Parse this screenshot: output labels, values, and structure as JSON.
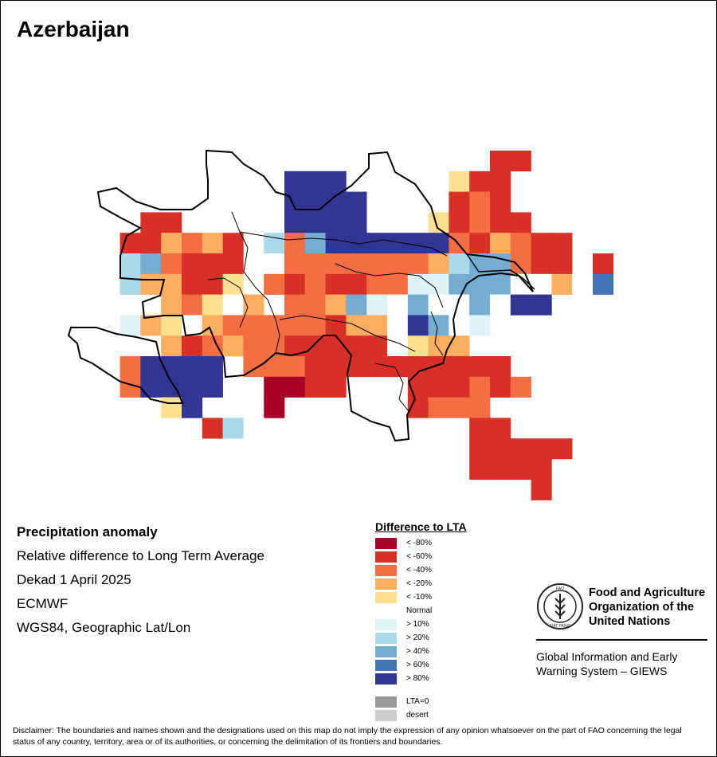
{
  "title": "Azerbaijan",
  "info": {
    "title": "Precipitation anomaly",
    "line1": "Relative difference to Long Term Average",
    "line2": "Dekad 1 April 2025",
    "line3": "ECMWF",
    "line4": "WGS84, Geographic Lat/Lon"
  },
  "legend": {
    "title": "Difference to LTA",
    "items": [
      {
        "label": "< -80%",
        "color": "#A50026"
      },
      {
        "label": "< -60%",
        "color": "#D73027"
      },
      {
        "label": "< -40%",
        "color": "#F46D43"
      },
      {
        "label": "< -20%",
        "color": "#FDAE61"
      },
      {
        "label": "< -10%",
        "color": "#FEE090"
      },
      {
        "label": "Normal",
        "color": "#FFFFFF"
      },
      {
        "label": "> 10%",
        "color": "#E0F3F8"
      },
      {
        "label": "> 20%",
        "color": "#ABD9E9"
      },
      {
        "label": "> 40%",
        "color": "#74ADD1"
      },
      {
        "label": "> 60%",
        "color": "#4575B4"
      },
      {
        "label": "> 80%",
        "color": "#313695"
      }
    ],
    "extra": [
      {
        "label": "LTA=0",
        "color": "#9B9B9B"
      },
      {
        "label": "desert",
        "color": "#CCCCCC"
      }
    ]
  },
  "map": {
    "grid_rows": [
      [
        "........................................................................."
      ],
      [
        "........................................................................."
      ]
    ],
    "palette_keys": {
      "A": "< -80%",
      "B": "< -60%",
      "C": "< -40%",
      "D": "< -20%",
      "E": "< -10%",
      "N": "Normal",
      "F": "> 10%",
      "G": "> 20%",
      "H": "> 40%",
      "I": "> 60%",
      "J": "> 80%"
    },
    "cells": [
      "....................BB......................",
      "..........JJJ.....EBB.......................",
      "..........JJJJ....BCB.......................",
      "...BB.....JJJJ...EBCBB......................",
      "..BBDCDB.GCHJJJJJJCBDCBB....................",
      "..GHCBBB.NCCCCCCCDGHHCBB.B..................",
      "..GDDBBE.CBCBBCCFFHHHNNDNI..................",
      "....DCEND.CCDHFNHNNHNJJ.....................",
      "..FDENDCCCCCBDDNJHNF........................",
      "....DBCDCCBBBBBNEDD.........................",
      "..CJJJJ.CCCBBBBBBBBBB.......................",
      "..CJJJJ..AABB...BBBCBC......................",
      "....EJ...A......BCCC........................",
      "......BG...........BB.......................",
      "...................BBBBB....................",
      "...................BBBB.....................",
      "......................B....................."
    ],
    "cell_origin_note": "grid cells drawn as colored squares"
  },
  "fao": {
    "org_line1": "Food and Agriculture",
    "org_line2": "Organization of the",
    "org_line3": "United Nations",
    "logo_text": "FAO",
    "logo_motto": "FIAT PANIS",
    "giews_line1": "Global Information and Early",
    "giews_line2": "Warning System – GIEWS"
  },
  "disclaimer": "Disclaimer: The boundaries and names shown and the designations used on this map do not imply the expression of any opinion whatsoever on the part of FAO concerning the legal status of any country, territory, area or of its authorities, or concerning the delimitation of its frontiers and boundaries."
}
